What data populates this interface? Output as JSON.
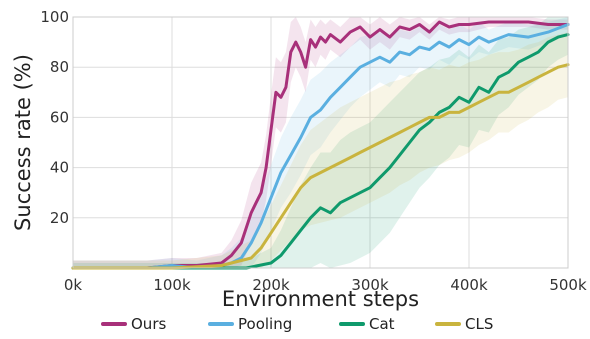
{
  "chart_data": {
    "type": "line",
    "xlabel": "Environment steps",
    "ylabel": "Success rate (%)",
    "xlim": [
      0,
      500000
    ],
    "ylim": [
      0,
      100
    ],
    "x_ticks": [
      0,
      100000,
      200000,
      300000,
      400000,
      500000
    ],
    "x_tick_labels": [
      "0k",
      "100k",
      "200k",
      "300k",
      "400k",
      "500k"
    ],
    "y_ticks": [
      20,
      40,
      60,
      80,
      100
    ],
    "y_tick_labels": [
      "20",
      "40",
      "60",
      "80",
      "100"
    ],
    "grid": true,
    "legend_position": "bottom",
    "series": [
      {
        "name": "Ours",
        "color": "#a8307a",
        "x": [
          0,
          25000,
          50000,
          75000,
          100000,
          125000,
          150000,
          160000,
          170000,
          180000,
          185000,
          190000,
          195000,
          200000,
          205000,
          210000,
          215000,
          220000,
          225000,
          230000,
          235000,
          240000,
          245000,
          250000,
          255000,
          260000,
          270000,
          280000,
          290000,
          300000,
          310000,
          320000,
          330000,
          340000,
          350000,
          360000,
          370000,
          380000,
          390000,
          400000,
          420000,
          440000,
          460000,
          480000,
          500000
        ],
        "y": [
          0,
          0,
          0,
          0,
          1,
          1,
          2,
          5,
          10,
          22,
          26,
          30,
          40,
          55,
          70,
          68,
          72,
          86,
          90,
          86,
          80,
          91,
          88,
          92,
          90,
          93,
          90,
          94,
          96,
          92,
          95,
          92,
          96,
          95,
          97,
          94,
          98,
          96,
          97,
          97,
          98,
          98,
          98,
          97,
          97
        ],
        "band": [
          3,
          3,
          3,
          3,
          3,
          3,
          4,
          6,
          9,
          12,
          12,
          12,
          13,
          14,
          14,
          14,
          14,
          12,
          10,
          10,
          10,
          8,
          8,
          7,
          7,
          6,
          6,
          6,
          5,
          5,
          5,
          5,
          4,
          4,
          3,
          3,
          3,
          3,
          3,
          3,
          2,
          2,
          2,
          2,
          2
        ]
      },
      {
        "name": "Pooling",
        "color": "#5aafe0",
        "x": [
          0,
          25000,
          50000,
          75000,
          100000,
          125000,
          150000,
          160000,
          170000,
          180000,
          190000,
          200000,
          210000,
          220000,
          230000,
          240000,
          250000,
          260000,
          270000,
          280000,
          290000,
          300000,
          310000,
          320000,
          330000,
          340000,
          350000,
          360000,
          370000,
          380000,
          390000,
          400000,
          410000,
          420000,
          440000,
          460000,
          480000,
          500000
        ],
        "y": [
          0,
          0,
          0,
          0,
          1,
          0,
          1,
          2,
          4,
          10,
          18,
          28,
          38,
          45,
          52,
          60,
          63,
          68,
          72,
          76,
          80,
          82,
          84,
          82,
          86,
          85,
          88,
          87,
          90,
          88,
          91,
          89,
          92,
          90,
          93,
          92,
          94,
          97
        ],
        "band": [
          3,
          3,
          3,
          3,
          3,
          3,
          4,
          6,
          8,
          10,
          12,
          13,
          14,
          15,
          15,
          15,
          15,
          14,
          13,
          12,
          12,
          11,
          10,
          10,
          9,
          9,
          8,
          8,
          7,
          7,
          6,
          6,
          6,
          5,
          5,
          5,
          4,
          4
        ]
      },
      {
        "name": "Cat",
        "color": "#0f9a6c",
        "x": [
          0,
          50000,
          100000,
          150000,
          175000,
          200000,
          210000,
          220000,
          230000,
          240000,
          250000,
          260000,
          270000,
          280000,
          290000,
          300000,
          310000,
          320000,
          330000,
          340000,
          350000,
          360000,
          370000,
          380000,
          390000,
          400000,
          410000,
          420000,
          430000,
          440000,
          450000,
          460000,
          470000,
          480000,
          490000,
          500000
        ],
        "y": [
          0,
          0,
          0,
          0,
          0,
          2,
          5,
          10,
          15,
          20,
          24,
          22,
          26,
          28,
          30,
          32,
          36,
          40,
          45,
          50,
          55,
          58,
          62,
          64,
          68,
          66,
          72,
          70,
          76,
          78,
          82,
          84,
          86,
          90,
          92,
          93
        ],
        "band": [
          2,
          2,
          2,
          2,
          3,
          6,
          10,
          14,
          18,
          20,
          22,
          24,
          25,
          26,
          26,
          26,
          26,
          26,
          25,
          24,
          23,
          22,
          21,
          20,
          19,
          18,
          17,
          16,
          15,
          14,
          13,
          12,
          11,
          10,
          9,
          8
        ]
      },
      {
        "name": "CLS",
        "color": "#c9b43e",
        "x": [
          0,
          50000,
          100000,
          150000,
          180000,
          190000,
          200000,
          210000,
          220000,
          230000,
          240000,
          250000,
          260000,
          270000,
          280000,
          290000,
          300000,
          310000,
          320000,
          330000,
          340000,
          350000,
          360000,
          370000,
          380000,
          390000,
          400000,
          410000,
          420000,
          430000,
          440000,
          450000,
          460000,
          470000,
          480000,
          490000,
          500000
        ],
        "y": [
          0,
          0,
          0,
          1,
          4,
          8,
          14,
          20,
          26,
          32,
          36,
          38,
          40,
          42,
          44,
          46,
          48,
          50,
          52,
          54,
          56,
          58,
          60,
          60,
          62,
          62,
          64,
          66,
          68,
          70,
          70,
          72,
          74,
          76,
          78,
          80,
          81
        ],
        "band": [
          3,
          3,
          3,
          4,
          7,
          9,
          11,
          13,
          15,
          17,
          19,
          20,
          21,
          22,
          22,
          22,
          22,
          22,
          22,
          21,
          21,
          20,
          20,
          19,
          19,
          18,
          18,
          17,
          17,
          16,
          16,
          15,
          15,
          14,
          14,
          13,
          13
        ]
      }
    ]
  }
}
